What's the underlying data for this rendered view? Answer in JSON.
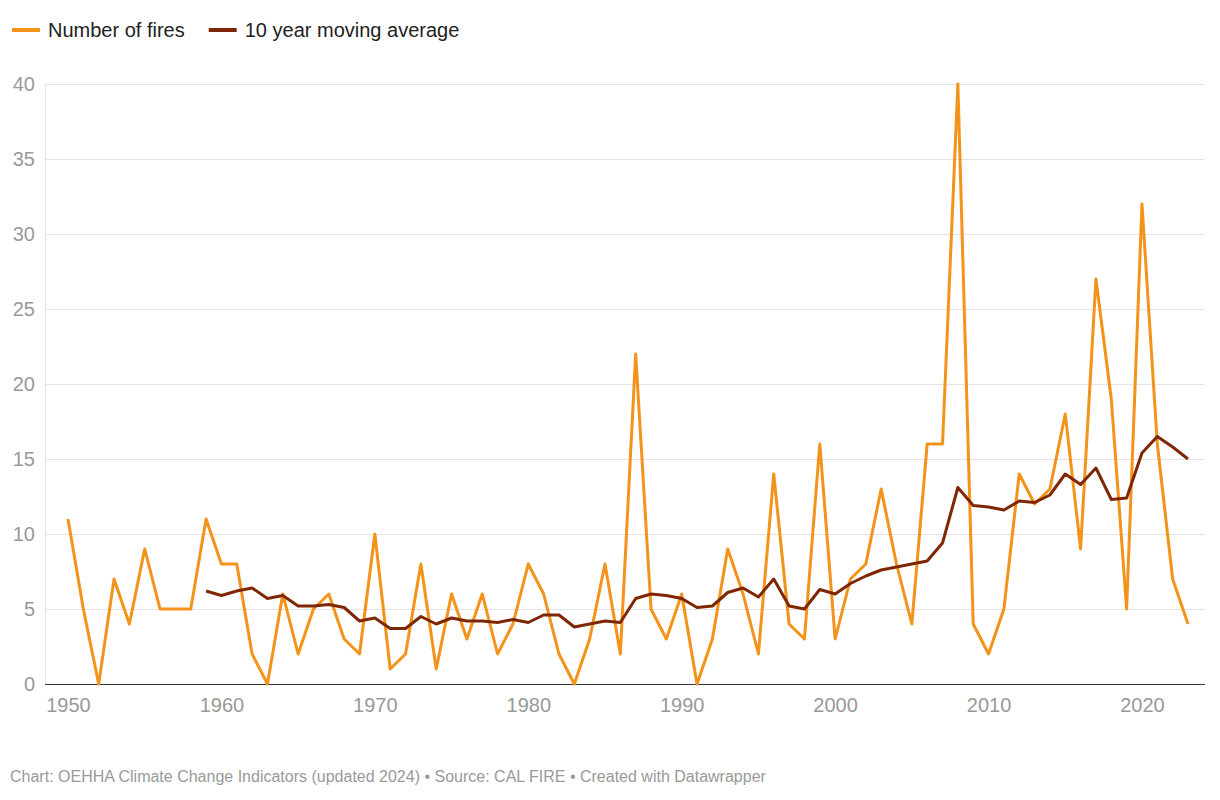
{
  "chart_data": {
    "type": "line",
    "footer": "Chart: OEHHA Climate Change Indicators (updated 2024) • Source: CAL FIRE • Created with Datawrapper",
    "x": [
      1950,
      1951,
      1952,
      1953,
      1954,
      1955,
      1956,
      1957,
      1958,
      1959,
      1960,
      1961,
      1962,
      1963,
      1964,
      1965,
      1966,
      1967,
      1968,
      1969,
      1970,
      1971,
      1972,
      1973,
      1974,
      1975,
      1976,
      1977,
      1978,
      1979,
      1980,
      1981,
      1982,
      1983,
      1984,
      1985,
      1986,
      1987,
      1988,
      1989,
      1990,
      1991,
      1992,
      1993,
      1994,
      1995,
      1996,
      1997,
      1998,
      1999,
      2000,
      2001,
      2002,
      2003,
      2004,
      2005,
      2006,
      2007,
      2008,
      2009,
      2010,
      2011,
      2012,
      2013,
      2014,
      2015,
      2016,
      2017,
      2018,
      2019,
      2020,
      2021,
      2022,
      2023
    ],
    "series": [
      {
        "name": "Number of fires",
        "color": "#f4931a",
        "values": [
          11,
          5,
          0,
          7,
          4,
          9,
          5,
          5,
          5,
          11,
          8,
          8,
          2,
          0,
          6,
          2,
          5,
          6,
          3,
          2,
          10,
          1,
          2,
          8,
          1,
          6,
          3,
          6,
          2,
          4,
          8,
          6,
          2,
          0,
          3,
          8,
          2,
          22,
          5,
          3,
          6,
          0,
          3,
          9,
          6,
          2,
          14,
          4,
          3,
          16,
          3,
          7,
          8,
          13,
          8,
          4,
          16,
          16,
          40,
          4,
          2,
          5,
          14,
          12,
          13,
          18,
          9,
          27,
          19,
          5,
          32,
          16,
          7,
          4
        ]
      },
      {
        "name": "10 year moving average",
        "color": "#7f2704",
        "values": [
          null,
          null,
          null,
          null,
          null,
          null,
          null,
          null,
          null,
          6.2,
          5.9,
          6.2,
          6.4,
          5.7,
          5.9,
          5.2,
          5.2,
          5.3,
          5.1,
          4.2,
          4.4,
          3.7,
          3.7,
          4.5,
          4.0,
          4.4,
          4.2,
          4.2,
          4.1,
          4.3,
          4.1,
          4.6,
          4.6,
          3.8,
          4.0,
          4.2,
          4.1,
          5.7,
          6.0,
          5.9,
          5.7,
          5.1,
          5.2,
          6.1,
          6.4,
          5.8,
          7.0,
          5.2,
          5.0,
          6.3,
          6.0,
          6.7,
          7.2,
          7.6,
          7.8,
          8.0,
          8.2,
          9.4,
          13.1,
          11.9,
          11.8,
          11.6,
          12.2,
          12.1,
          12.6,
          14.0,
          13.3,
          14.4,
          12.3,
          12.4,
          15.4,
          16.5,
          15.8,
          15.0
        ]
      }
    ],
    "xlim": [
      1950,
      2023
    ],
    "xticks": [
      1950,
      1960,
      1970,
      1980,
      1990,
      2000,
      2010,
      2020
    ],
    "ylim": [
      0,
      40
    ],
    "yticks": [
      0,
      5,
      10,
      15,
      20,
      25,
      30,
      35,
      40
    ],
    "grid": true,
    "legend": "top-left"
  }
}
